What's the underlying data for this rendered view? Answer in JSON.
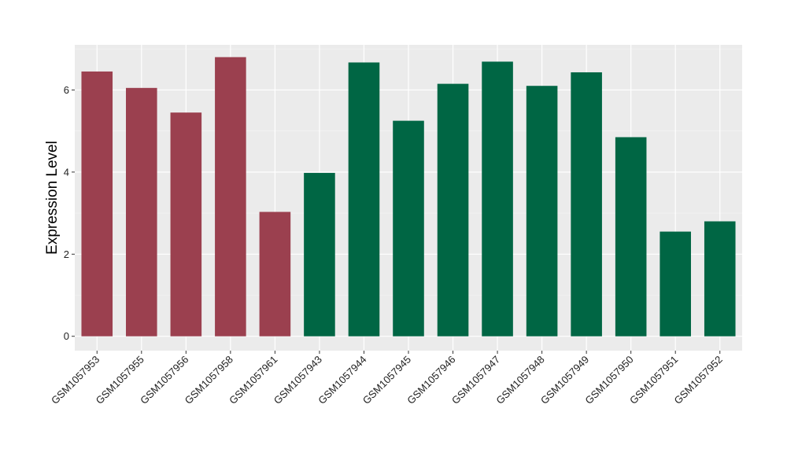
{
  "chart_data": {
    "type": "bar",
    "title": "",
    "xlabel": "",
    "ylabel": "Expression Level",
    "ylim": [
      -0.35,
      7.1
    ],
    "yticks": [
      0,
      2,
      4,
      6
    ],
    "grid": true,
    "categories": [
      "GSM1057953",
      "GSM1057955",
      "GSM1057956",
      "GSM1057958",
      "GSM1057961",
      "GSM1057943",
      "GSM1057944",
      "GSM1057945",
      "GSM1057946",
      "GSM1057947",
      "GSM1057948",
      "GSM1057949",
      "GSM1057950",
      "GSM1057951",
      "GSM1057952"
    ],
    "values": [
      6.45,
      6.05,
      5.45,
      6.8,
      3.03,
      3.98,
      6.67,
      5.25,
      6.15,
      6.69,
      6.1,
      6.43,
      4.85,
      2.55,
      2.8
    ],
    "groups": [
      0,
      0,
      0,
      0,
      0,
      1,
      1,
      1,
      1,
      1,
      1,
      1,
      1,
      1,
      1
    ],
    "colors": {
      "group_0": "#9b404f",
      "group_1": "#006644",
      "panel_background": "#ebebeb",
      "grid_major": "#ffffff",
      "grid_minor": "#f5f5f5"
    }
  }
}
